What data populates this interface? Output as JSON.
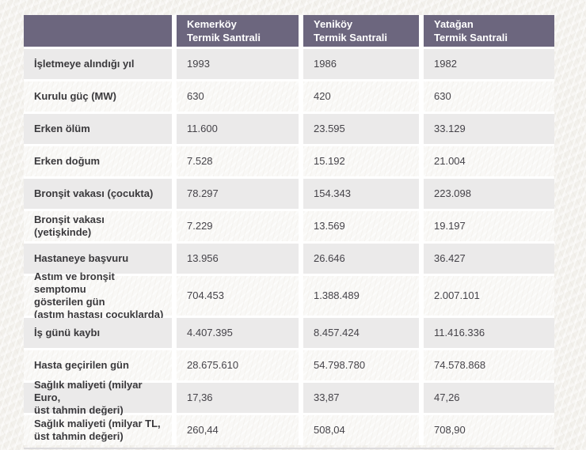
{
  "table": {
    "columns": [
      {
        "name": "Kemerköy",
        "subtitle": "Termik Santrali"
      },
      {
        "name": "Yeniköy",
        "subtitle": "Termik Santrali"
      },
      {
        "name": "Yatağan",
        "subtitle": "Termik Santrali"
      }
    ],
    "rows": [
      {
        "label": "İşletmeye alındığı yıl",
        "values": [
          "1993",
          "1986",
          "1982"
        ]
      },
      {
        "label": "Kurulu güç (MW)",
        "values": [
          "630",
          "420",
          "630"
        ]
      },
      {
        "label": "Erken ölüm",
        "values": [
          "11.600",
          "23.595",
          "33.129"
        ]
      },
      {
        "label": "Erken doğum",
        "values": [
          "7.528",
          "15.192",
          "21.004"
        ]
      },
      {
        "label": "Bronşit vakası (çocukta)",
        "values": [
          "78.297",
          "154.343",
          "223.098"
        ]
      },
      {
        "label": "Bronşit vakası (yetişkinde)",
        "values": [
          "7.229",
          "13.569",
          "19.197"
        ]
      },
      {
        "label": "Hastaneye başvuru",
        "values": [
          "13.956",
          "26.646",
          "36.427"
        ]
      },
      {
        "label": "Astım ve bronşit semptomu\ngösterilen gün\n(astım hastası çocuklarda)",
        "values": [
          "704.453",
          "1.388.489",
          "2.007.101"
        ]
      },
      {
        "label": "İş günü kaybı",
        "values": [
          "4.407.395",
          "8.457.424",
          "11.416.336"
        ]
      },
      {
        "label": "Hasta geçirilen gün",
        "values": [
          "28.675.610",
          "54.798.780",
          "74.578.868"
        ]
      },
      {
        "label": "Sağlık maliyeti (milyar Euro,\nüst tahmin değeri)",
        "values": [
          "17,36",
          "33,87",
          "47,26"
        ]
      },
      {
        "label": "Sağlık maliyeti (milyar TL,\nüst tahmin değeri)",
        "values": [
          "260,44",
          "508,04",
          "708,90"
        ]
      }
    ]
  },
  "colors": {
    "header_bg": "#6c667e",
    "alt_row_bg": "#ebeaea",
    "page_bg": "#f3f1ed",
    "header_text": "#ffffff",
    "label_text": "#3a393c",
    "value_text": "#454349"
  }
}
